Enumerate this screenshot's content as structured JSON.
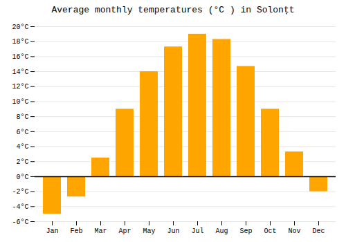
{
  "chart_data": {
    "type": "bar",
    "title": "Average monthly temperatures (°C ) in Solonțt",
    "categories": [
      "Jan",
      "Feb",
      "Mar",
      "Apr",
      "May",
      "Jun",
      "Jul",
      "Aug",
      "Sep",
      "Oct",
      "Nov",
      "Dec"
    ],
    "values": [
      -5.0,
      -2.7,
      2.5,
      9.0,
      14.0,
      17.3,
      19.0,
      18.3,
      14.7,
      9.0,
      3.3,
      -2.0
    ],
    "color": "#FFA500",
    "ylim": [
      -6,
      20
    ],
    "yticks": [
      {
        "value": -6,
        "label": "-6°C"
      },
      {
        "value": -4,
        "label": "-4°C"
      },
      {
        "value": -2,
        "label": "-2°C"
      },
      {
        "value": 0,
        "label": "0°C"
      },
      {
        "value": 2,
        "label": "2°C"
      },
      {
        "value": 4,
        "label": "4°C"
      },
      {
        "value": 6,
        "label": "6°C"
      },
      {
        "value": 8,
        "label": "8°C"
      },
      {
        "value": 10,
        "label": "10°C"
      },
      {
        "value": 12,
        "label": "12°C"
      },
      {
        "value": 14,
        "label": "14°C"
      },
      {
        "value": 16,
        "label": "16°C"
      },
      {
        "value": 18,
        "label": "18°C"
      },
      {
        "value": 20,
        "label": "20°C"
      }
    ],
    "grid": true
  }
}
